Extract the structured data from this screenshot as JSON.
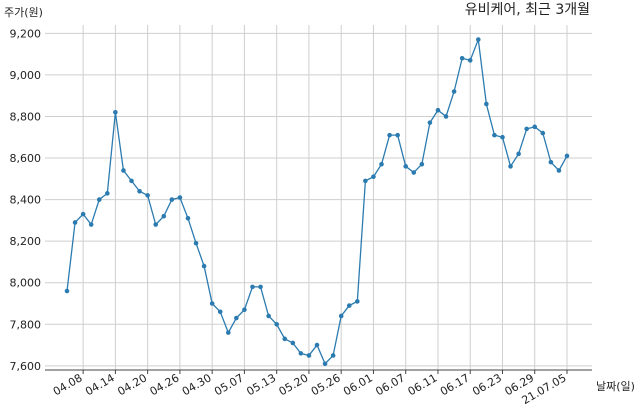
{
  "chart_data": {
    "type": "line",
    "title": "유비케어, 최근 3개월",
    "y_label": "주가(원)",
    "x_label": "날짜(일)",
    "categories": [
      null,
      null,
      "04.08",
      null,
      null,
      null,
      "04.14",
      null,
      null,
      null,
      "04.20",
      null,
      null,
      null,
      "04.26",
      null,
      null,
      null,
      "04.30",
      null,
      null,
      null,
      "05.07",
      null,
      null,
      null,
      "05.13",
      null,
      null,
      null,
      "05.20",
      null,
      null,
      null,
      "05.26",
      null,
      null,
      null,
      "06.01",
      null,
      null,
      null,
      "06.07",
      null,
      null,
      null,
      "06.11",
      null,
      null,
      null,
      "06.17",
      null,
      null,
      null,
      "06.23",
      null,
      null,
      null,
      "06.29",
      null,
      null,
      null,
      "21.07.05"
    ],
    "series": [
      {
        "name": "주가",
        "color": "#2b7bb0",
        "values": [
          7960,
          8290,
          8330,
          8280,
          8400,
          8430,
          8820,
          8540,
          8490,
          8440,
          8420,
          8280,
          8320,
          8400,
          8410,
          8310,
          8190,
          8080,
          7900,
          7860,
          7760,
          7830,
          7870,
          7980,
          7980,
          7840,
          7800,
          7730,
          7710,
          7660,
          7650,
          7700,
          7610,
          7650,
          7840,
          7890,
          7910,
          8490,
          8510,
          8570,
          8710,
          8710,
          8560,
          8530,
          8570,
          8770,
          8830,
          8800,
          8920,
          9080,
          9070,
          9170,
          8860,
          8710,
          8700,
          8560,
          8620,
          8740,
          8750,
          8720,
          8580,
          8540,
          8610
        ]
      }
    ],
    "ylim": [
      7580,
      9240
    ],
    "yticks": [
      {
        "value": 7600,
        "label": "7,600"
      },
      {
        "value": 7800,
        "label": "7,800"
      },
      {
        "value": 8000,
        "label": "8,000"
      },
      {
        "value": 8200,
        "label": "8,200"
      },
      {
        "value": 8400,
        "label": "8,400"
      },
      {
        "value": 8600,
        "label": "8,600"
      },
      {
        "value": 8800,
        "label": "8,800"
      },
      {
        "value": 9000,
        "label": "9,000"
      },
      {
        "value": 9200,
        "label": "9,200"
      }
    ],
    "grid": true
  }
}
